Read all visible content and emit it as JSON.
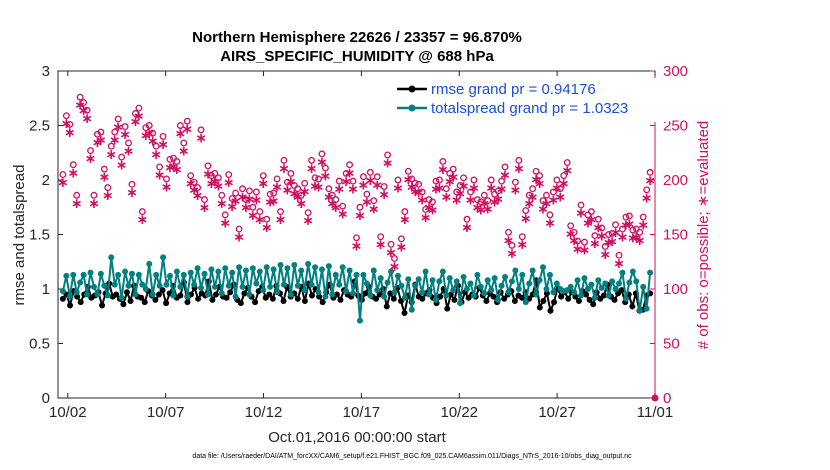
{
  "title_line1": "Northern Hemisphere 22626 / 23357 = 96.870%",
  "title_line2": "AIRS_SPECIFIC_HUMIDITY @ 688 hPa",
  "footer": "data file: /Users/raeder/DAI/ATM_forcXX/CAM6_setup/f.e21.FHIST_BGC.f09_025.CAM6assim.011/Diags_NTrS_2016-10/obs_diag_output.nc",
  "colors": {
    "rmse": "#000000",
    "spread": "#008080",
    "obs": "#d01060",
    "axis": "#262626",
    "legend_text": "#1a4fd6"
  },
  "chart_data": {
    "type": "line",
    "xlabel": "Oct.01,2016 00:00:00 start",
    "ylabel_left": "rmse and totalspread",
    "ylabel_right": "# of obs: o=possible; ∗=evaluated",
    "ylim_left": [
      0,
      3
    ],
    "ylim_right": [
      0,
      300
    ],
    "xlim_days": [
      0.5,
      31.0
    ],
    "yticks_left": [
      "0",
      "0.5",
      "1",
      "1.5",
      "2",
      "2.5",
      "3"
    ],
    "yticks_right": [
      "0",
      "50",
      "100",
      "150",
      "200",
      "250",
      "300"
    ],
    "xticks": [
      {
        "day": 1.0,
        "label": "10/02"
      },
      {
        "day": 6.0,
        "label": "10/07"
      },
      {
        "day": 11.0,
        "label": "10/12"
      },
      {
        "day": 16.0,
        "label": "10/17"
      },
      {
        "day": 21.0,
        "label": "10/22"
      },
      {
        "day": 26.0,
        "label": "10/27"
      },
      {
        "day": 31.0,
        "label": "11/01"
      }
    ],
    "series": [
      {
        "name": "rmse grand pr = 0.94176",
        "values": [
          0.91,
          0.95,
          0.85,
          0.98,
          0.93,
          0.88,
          0.95,
          1.02,
          0.92,
          0.94,
          0.97,
          0.85,
          0.96,
          1.05,
          0.93,
          0.95,
          0.91,
          0.86,
          0.97,
          0.89,
          1.03,
          0.93,
          0.92,
          0.88,
          0.98,
          0.94,
          0.9,
          0.95,
          0.99,
          0.87,
          0.96,
          1.03,
          0.92,
          0.94,
          1.06,
          0.88,
          0.95,
          1.01,
          0.91,
          0.96,
          0.94,
          1.07,
          0.9,
          0.95,
          1.02,
          0.93,
          0.92,
          0.97,
          1.04,
          0.9,
          0.87,
          0.96,
          1.01,
          0.93,
          0.88,
          0.98,
          1.02,
          0.92,
          0.95,
          0.91,
          1.03,
          0.96,
          0.89,
          1.02,
          0.93,
          0.96,
          0.91,
          1.02,
          0.89,
          1.05,
          0.94,
          1.0,
          0.93,
          0.88,
          0.97,
          1.04,
          0.92,
          0.95,
          0.9,
          0.99,
          0.95,
          0.93,
          1.07,
          0.94,
          0.9,
          0.96,
          1.02,
          0.93,
          0.91,
          0.95,
          1.0,
          0.84,
          0.96,
          0.91,
          1.01,
          0.89,
          0.78,
          0.94,
          0.88,
          1.04,
          0.93,
          0.91,
          0.96,
          0.99,
          0.92,
          0.87,
          0.93,
          1.0,
          0.82,
          0.95,
          0.9,
          1.03,
          0.88,
          0.97,
          0.92,
          0.95,
          0.93,
          1.01,
          0.94,
          0.89,
          0.96,
          0.93,
          0.88,
          0.97,
          0.91,
          0.95,
          0.98,
          0.89,
          0.94,
          0.92,
          0.97,
          0.91,
          0.95,
          1.08,
          0.83,
          0.89,
          0.96,
          0.8,
          0.88,
          1.01,
          0.93,
          0.97,
          0.91,
          0.97,
          0.93,
          0.89,
          0.98,
          0.95,
          0.9,
          0.86,
          0.97,
          0.91,
          0.94,
          1.04,
          0.93,
          0.9,
          0.96,
          0.99,
          0.88,
          0.95,
          0.84,
          0.96,
          0.8,
          0.81,
          0.94,
          0.96
        ]
      },
      {
        "name": "totalspread grand pr = 1.0323",
        "values": [
          0.98,
          1.12,
          0.93,
          1.13,
          0.97,
          1.06,
          1.13,
          0.95,
          1.15,
          1.02,
          0.95,
          1.14,
          1.03,
          0.94,
          1.29,
          1.04,
          1.13,
          0.92,
          1.16,
          1.03,
          1.14,
          0.95,
          1.13,
          1.04,
          1.0,
          1.23,
          0.95,
          1.13,
          1.03,
          1.29,
          1.04,
          1.12,
          0.94,
          1.16,
          1.02,
          1.13,
          0.93,
          1.15,
          1.04,
          1.19,
          1.01,
          1.14,
          0.95,
          1.18,
          1.02,
          1.16,
          0.96,
          1.19,
          1.03,
          1.15,
          0.93,
          1.2,
          1.02,
          1.17,
          0.95,
          1.19,
          1.05,
          1.16,
          0.99,
          1.2,
          1.02,
          1.18,
          0.97,
          1.22,
          1.04,
          1.19,
          0.95,
          1.22,
          1.03,
          1.17,
          0.99,
          1.23,
          1.04,
          1.2,
          0.97,
          1.18,
          0.93,
          1.21,
          0.95,
          1.13,
          1.04,
          1.2,
          0.98,
          1.17,
          0.96,
          1.13,
          0.71,
          1.13,
          1.05,
          0.94,
          1.17,
          0.99,
          1.1,
          0.93,
          1.06,
          1.16,
          0.97,
          1.12,
          1.03,
          0.92,
          1.09,
          0.81,
          1.03,
          1.09,
          0.97,
          1.16,
          0.95,
          1.08,
          0.9,
          1.07,
          1.16,
          0.94,
          1.1,
          0.99,
          1.07,
          0.87,
          1.11,
          1.0,
          1.05,
          0.94,
          1.13,
          1.02,
          0.96,
          1.08,
          0.99,
          1.1,
          0.9,
          1.03,
          1.11,
          0.97,
          1.07,
          1.17,
          1.0,
          1.13,
          0.88,
          1.05,
          1.17,
          0.95,
          1.08,
          1.2,
          1.0,
          1.13,
          0.97,
          1.05,
          1.0,
          0.98,
          0.99,
          1.02,
          0.97,
          1.08,
          0.94,
          1.1,
          1.0,
          1.04,
          0.92,
          1.08,
          1.01,
          1.05,
          0.94,
          1.07,
          1.0,
          1.05,
          1.15,
          0.91,
          1.06,
          1.16,
          1.07,
          0.8,
          1.02,
          0.82,
          1.15
        ]
      }
    ],
    "obs_possible": [
      199,
      253,
      245,
      208,
      180,
      270,
      265,
      258,
      221,
      180,
      236,
      238,
      204,
      187,
      225,
      238,
      250,
      215,
      243,
      228,
      190,
      255,
      260,
      165,
      242,
      244,
      237,
      225,
      206,
      234,
      195,
      213,
      214,
      211,
      244,
      228,
      248,
      198,
      192,
      187,
      240,
      176,
      207,
      198,
      200,
      196,
      180,
      162,
      199,
      177,
      182,
      149,
      186,
      176,
      184,
      169,
      183,
      165,
      198,
      158,
      181,
      182,
      195,
      165,
      212,
      192,
      200,
      189,
      186,
      180,
      191,
      164,
      212,
      196,
      195,
      218,
      205,
      186,
      180,
      176,
      193,
      170,
      200,
      208,
      193,
      141,
      169,
      197,
      181,
      201,
      175,
      197,
      142,
      188,
      217,
      135,
      122,
      194,
      140,
      165,
      202,
      195,
      191,
      190,
      183,
      167,
      176,
      174,
      193,
      194,
      211,
      186,
      200,
      204,
      183,
      189,
      196,
      158,
      183,
      194,
      176,
      174,
      180,
      175,
      194,
      181,
      184,
      193,
      206,
      146,
      134,
      192,
      212,
      142,
      166,
      180,
      186,
      202,
      198,
      175,
      180,
      162,
      183,
      194,
      186,
      198,
      210,
      152,
      146,
      138,
      171,
      137,
      162,
      165,
      143,
      158,
      150,
      133,
      144,
      145,
      153,
      125,
      149,
      160,
      161,
      148,
      149,
      146,
      160,
      185,
      201
    ]
  },
  "legend": [
    {
      "label": "rmse grand pr = 0.94176"
    },
    {
      "label": "totalspread grand pr = 1.0323"
    }
  ]
}
